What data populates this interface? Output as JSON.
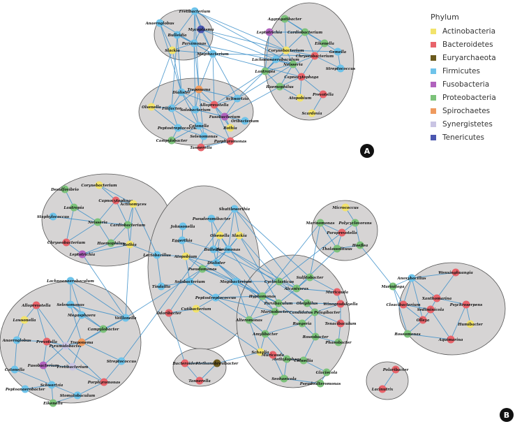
{
  "legend": {
    "title": "Phylum",
    "items": [
      {
        "label": "Actinobacteria",
        "color": "#f2e36b"
      },
      {
        "label": "Bacteroidetes",
        "color": "#e8636a"
      },
      {
        "label": "Euryarchaeota",
        "color": "#6b5a1e"
      },
      {
        "label": "Firmicutes",
        "color": "#6ec3ea"
      },
      {
        "label": "Fusobacteria",
        "color": "#b062bd"
      },
      {
        "label": "Proteobacteria",
        "color": "#7cc27a"
      },
      {
        "label": "Spirochaetes",
        "color": "#ef9a5e"
      },
      {
        "label": "Synergistetes",
        "color": "#c9c4e3"
      },
      {
        "label": "Tenericutes",
        "color": "#4b57b0"
      }
    ]
  },
  "panels": {
    "a": "A",
    "b": "B"
  },
  "network": {
    "edge_color": "#3a8ec9",
    "cluster_fill": "#d6d4d4",
    "nodes": [
      {
        "id": "a1",
        "label": "Fretibacterium",
        "phylum": "Firmicutes"
      },
      {
        "id": "a2",
        "label": "Anaeroglobus",
        "phylum": "Firmicutes"
      },
      {
        "id": "a3",
        "label": "Bulleidia",
        "phylum": "Firmicutes"
      },
      {
        "id": "a4",
        "label": "Mycoplasma",
        "phylum": "Tenericutes"
      },
      {
        "id": "a5",
        "label": "Parvimonas",
        "phylum": "Firmicutes"
      },
      {
        "id": "a6",
        "label": "Slackia",
        "phylum": "Actinobacteria"
      },
      {
        "id": "a7",
        "label": "Mogibacterium",
        "phylum": "Firmicutes"
      },
      {
        "id": "a8",
        "label": "Aggregatibacter",
        "phylum": "Proteobacteria"
      },
      {
        "id": "a9",
        "label": "Leptotrichia",
        "phylum": "Fusobacteria"
      },
      {
        "id": "a10",
        "label": "Cardiobacterium",
        "phylum": "Proteobacteria"
      },
      {
        "id": "a11",
        "label": "Eikenella",
        "phylum": "Proteobacteria"
      },
      {
        "id": "a12",
        "label": "Corynebacterium",
        "phylum": "Actinobacteria"
      },
      {
        "id": "a13",
        "label": "Gemella",
        "phylum": "Firmicutes"
      },
      {
        "id": "a14",
        "label": "Chryseobacterium",
        "phylum": "Bacteroidetes"
      },
      {
        "id": "a15",
        "label": "Lachnoanaerobaculum",
        "phylum": "Firmicutes"
      },
      {
        "id": "a16",
        "label": "Neisseria",
        "phylum": "Proteobacteria"
      },
      {
        "id": "a17",
        "label": "Streptococcus",
        "phylum": "Firmicutes"
      },
      {
        "id": "a18",
        "label": "Lautropia",
        "phylum": "Proteobacteria"
      },
      {
        "id": "a19",
        "label": "Capnocytophaga",
        "phylum": "Bacteroidetes"
      },
      {
        "id": "a20",
        "label": "Haemophilus",
        "phylum": "Proteobacteria"
      },
      {
        "id": "a21",
        "label": "Prevotella",
        "phylum": "Bacteroidetes"
      },
      {
        "id": "a22",
        "label": "Atopobium",
        "phylum": "Actinobacteria"
      },
      {
        "id": "a23",
        "label": "Scardovia",
        "phylum": "Actinobacteria"
      },
      {
        "id": "a24",
        "label": "Treponema",
        "phylum": "Spirochaetes"
      },
      {
        "id": "a25",
        "label": "Dialister",
        "phylum": "Firmicutes"
      },
      {
        "id": "a26",
        "label": "Schwartzia",
        "phylum": "Firmicutes"
      },
      {
        "id": "a27",
        "label": "Filifactor",
        "phylum": "Firmicutes"
      },
      {
        "id": "a28",
        "label": "Alloprevotella",
        "phylum": "Bacteroidetes"
      },
      {
        "id": "a29",
        "label": "Olsenella",
        "phylum": "Actinobacteria"
      },
      {
        "id": "a30",
        "label": "Solobacterium",
        "phylum": "Firmicutes"
      },
      {
        "id": "a31",
        "label": "Fusobacterium",
        "phylum": "Fusobacteria"
      },
      {
        "id": "a32",
        "label": "Oribacterium",
        "phylum": "Firmicutes"
      },
      {
        "id": "a33",
        "label": "Peptostreptococcus",
        "phylum": "Firmicutes"
      },
      {
        "id": "a34",
        "label": "Catonella",
        "phylum": "Firmicutes"
      },
      {
        "id": "a35",
        "label": "Rothia",
        "phylum": "Actinobacteria"
      },
      {
        "id": "a36",
        "label": "Selenomonas",
        "phylum": "Firmicutes"
      },
      {
        "id": "a37",
        "label": "Porphyromonas",
        "phylum": "Bacteroidetes"
      },
      {
        "id": "a38",
        "label": "Campylobacter",
        "phylum": "Proteobacteria"
      },
      {
        "id": "a39",
        "label": "Tannerella",
        "phylum": "Bacteroidetes"
      },
      {
        "id": "b1",
        "label": "Corynebacterium",
        "phylum": "Actinobacteria"
      },
      {
        "id": "b2",
        "label": "Desulfovibrio",
        "phylum": "Proteobacteria"
      },
      {
        "id": "b3",
        "label": "Capnocytophaga",
        "phylum": "Bacteroidetes"
      },
      {
        "id": "b4",
        "label": "Lautropia",
        "phylum": "Proteobacteria"
      },
      {
        "id": "b5",
        "label": "Actinomyces",
        "phylum": "Actinobacteria"
      },
      {
        "id": "b6",
        "label": "Staphylococcus",
        "phylum": "Firmicutes"
      },
      {
        "id": "b7",
        "label": "Neisseria",
        "phylum": "Proteobacteria"
      },
      {
        "id": "b8",
        "label": "Cardiobacterium",
        "phylum": "Proteobacteria"
      },
      {
        "id": "b9",
        "label": "Chryseobacterium",
        "phylum": "Bacteroidetes"
      },
      {
        "id": "b10",
        "label": "Haemophilus",
        "phylum": "Proteobacteria"
      },
      {
        "id": "b11",
        "label": "Rothia",
        "phylum": "Actinobacteria"
      },
      {
        "id": "b12",
        "label": "Leptotrichia",
        "phylum": "Fusobacteria"
      },
      {
        "id": "b13",
        "label": "Lachnoanaerobaculum",
        "phylum": "Firmicutes"
      },
      {
        "id": "b14",
        "label": "Alloprevotella",
        "phylum": "Bacteroidetes"
      },
      {
        "id": "b15",
        "label": "Selenomonas",
        "phylum": "Firmicutes"
      },
      {
        "id": "b16",
        "label": "Lawsonella",
        "phylum": "Actinobacteria"
      },
      {
        "id": "b17",
        "label": "Megasphaera",
        "phylum": "Firmicutes"
      },
      {
        "id": "b18",
        "label": "Veillonella",
        "phylum": "Firmicutes"
      },
      {
        "id": "b19",
        "label": "Campylobacter",
        "phylum": "Proteobacteria"
      },
      {
        "id": "b20",
        "label": "Anaeroglobus",
        "phylum": "Firmicutes"
      },
      {
        "id": "b21",
        "label": "Prevotella",
        "phylum": "Bacteroidetes"
      },
      {
        "id": "b22",
        "label": "Pyramidobacter",
        "phylum": "Synergistetes"
      },
      {
        "id": "b23",
        "label": "Treponema",
        "phylum": "Spirochaetes"
      },
      {
        "id": "b24",
        "label": "Catonella",
        "phylum": "Firmicutes"
      },
      {
        "id": "b25",
        "label": "Fusobacterium",
        "phylum": "Fusobacteria"
      },
      {
        "id": "b26",
        "label": "Fretibacterium",
        "phylum": "Synergistetes"
      },
      {
        "id": "b27",
        "label": "Streptococcus",
        "phylum": "Firmicutes"
      },
      {
        "id": "b28",
        "label": "Schwartzia",
        "phylum": "Firmicutes"
      },
      {
        "id": "b29",
        "label": "Porphyromonas",
        "phylum": "Bacteroidetes"
      },
      {
        "id": "b30",
        "label": "Peptoanaerobacter",
        "phylum": "Firmicutes"
      },
      {
        "id": "b31",
        "label": "Stomatobaculum",
        "phylum": "Firmicutes"
      },
      {
        "id": "b32",
        "label": "Eikenella",
        "phylum": "Proteobacteria"
      },
      {
        "id": "b33",
        "label": "Shuttleworthia",
        "phylum": "Firmicutes"
      },
      {
        "id": "b34",
        "label": "Pseudoramibacter",
        "phylum": "Firmicutes"
      },
      {
        "id": "b35",
        "label": "Johnsonella",
        "phylum": "Firmicutes"
      },
      {
        "id": "b36",
        "label": "Olsenella",
        "phylum": "Actinobacteria"
      },
      {
        "id": "b37",
        "label": "Slackia",
        "phylum": "Actinobacteria"
      },
      {
        "id": "b38",
        "label": "Eggerthia",
        "phylum": "Firmicutes"
      },
      {
        "id": "b39",
        "label": "Bulleidia",
        "phylum": "Firmicutes"
      },
      {
        "id": "b40",
        "label": "Parvimonas",
        "phylum": "Firmicutes"
      },
      {
        "id": "b41",
        "label": "Lactobacillus",
        "phylum": "Firmicutes"
      },
      {
        "id": "b42",
        "label": "Atopobium",
        "phylum": "Actinobacteria"
      },
      {
        "id": "b43",
        "label": "Dialister",
        "phylum": "Firmicutes"
      },
      {
        "id": "b44",
        "label": "Pseudomonas",
        "phylum": "Proteobacteria"
      },
      {
        "id": "b45",
        "label": "Solobacterium",
        "phylum": "Firmicutes"
      },
      {
        "id": "b46",
        "label": "Mogibacterium",
        "phylum": "Firmicutes"
      },
      {
        "id": "b47",
        "label": "Tindallia",
        "phylum": "Firmicutes"
      },
      {
        "id": "b48",
        "label": "Peptostreptococcus",
        "phylum": "Firmicutes"
      },
      {
        "id": "b49",
        "label": "Cutibacterium",
        "phylum": "Actinobacteria"
      },
      {
        "id": "b50",
        "label": "Odoribacter",
        "phylum": "Bacteroidetes"
      },
      {
        "id": "b51",
        "label": "Micrococcus",
        "phylum": "Actinobacteria"
      },
      {
        "id": "b52",
        "label": "Marinomonas",
        "phylum": "Proteobacteria"
      },
      {
        "id": "b53",
        "label": "Polycyclovorans",
        "phylum": "Proteobacteria"
      },
      {
        "id": "b54",
        "label": "Paraprevotella",
        "phylum": "Bacteroidetes"
      },
      {
        "id": "b55",
        "label": "Thalassolituus",
        "phylum": "Proteobacteria"
      },
      {
        "id": "b56",
        "label": "Hoeflea",
        "phylum": "Proteobacteria"
      },
      {
        "id": "b57",
        "label": "Sulfitobacter",
        "phylum": "Proteobacteria"
      },
      {
        "id": "b58",
        "label": "Cycloclasticus",
        "phylum": "Proteobacteria"
      },
      {
        "id": "b59",
        "label": "Alcanivorax",
        "phylum": "Proteobacteria"
      },
      {
        "id": "b60",
        "label": "Muricauda",
        "phylum": "Bacteroidetes"
      },
      {
        "id": "b61",
        "label": "Hyphomonas",
        "phylum": "Proteobacteria"
      },
      {
        "id": "b62",
        "label": "Parvibaculum",
        "phylum": "Proteobacteria"
      },
      {
        "id": "b63",
        "label": "Oleiphilus",
        "phylum": "Proteobacteria"
      },
      {
        "id": "b64",
        "label": "Winogradskyella",
        "phylum": "Bacteroidetes"
      },
      {
        "id": "b65",
        "label": "Marinobacter",
        "phylum": "Proteobacteria"
      },
      {
        "id": "b66",
        "label": "Candidatus Pelagibacter",
        "phylum": "Proteobacteria"
      },
      {
        "id": "b67",
        "label": "Ruegeria",
        "phylum": "Proteobacteria"
      },
      {
        "id": "b68",
        "label": "Tenacibaculum",
        "phylum": "Bacteroidetes"
      },
      {
        "id": "b69",
        "label": "Alteromonas",
        "phylum": "Proteobacteria"
      },
      {
        "id": "b70",
        "label": "Amylibacter",
        "phylum": "Proteobacteria"
      },
      {
        "id": "b71",
        "label": "Roseobacter",
        "phylum": "Proteobacteria"
      },
      {
        "id": "b72",
        "label": "Phaeobacter",
        "phylum": "Proteobacteria"
      },
      {
        "id": "b73",
        "label": "Schaalia",
        "phylum": "Actinobacteria"
      },
      {
        "id": "b74",
        "label": "Methylophaga",
        "phylum": "Proteobacteria"
      },
      {
        "id": "b75",
        "label": "Muricauda",
        "phylum": "Bacteroidetes"
      },
      {
        "id": "b76",
        "label": "Colwellia",
        "phylum": "Proteobacteria"
      },
      {
        "id": "b77",
        "label": "Glaciecola",
        "phylum": "Proteobacteria"
      },
      {
        "id": "b78",
        "label": "Seohaeicola",
        "phylum": "Proteobacteria"
      },
      {
        "id": "b79",
        "label": "Pseudoalteromonas",
        "phylum": "Proteobacteria"
      },
      {
        "id": "b80",
        "label": "Bacteroides",
        "phylum": "Bacteroidetes"
      },
      {
        "id": "b81",
        "label": "Methanobrevibacter",
        "phylum": "Euryarchaeota"
      },
      {
        "id": "b82",
        "label": "Tannerella",
        "phylum": "Bacteroidetes"
      },
      {
        "id": "b83",
        "label": "Marinitoga",
        "phylum": "Proteobacteria"
      },
      {
        "id": "b84",
        "label": "Anoxybacillus",
        "phylum": "Firmicutes"
      },
      {
        "id": "b85",
        "label": "Wenxinghuangia",
        "phylum": "Bacteroidetes"
      },
      {
        "id": "b86",
        "label": "Xanthomarina",
        "phylum": "Bacteroidetes"
      },
      {
        "id": "b87",
        "label": "Cloacibacterium",
        "phylum": "Bacteroidetes"
      },
      {
        "id": "b88",
        "label": "Psychroserpens",
        "phylum": "Bacteroidetes"
      },
      {
        "id": "b89",
        "label": "Sediminicola",
        "phylum": "Bacteroidetes"
      },
      {
        "id": "b90",
        "label": "Olleya",
        "phylum": "Bacteroidetes"
      },
      {
        "id": "b91",
        "label": "Humibacter",
        "phylum": "Actinobacteria"
      },
      {
        "id": "b92",
        "label": "Roseomonas",
        "phylum": "Proteobacteria"
      },
      {
        "id": "b93",
        "label": "Aquimarina",
        "phylum": "Bacteroidetes"
      },
      {
        "id": "b94",
        "label": "Polaribacter",
        "phylum": "Bacteroidetes"
      },
      {
        "id": "b95",
        "label": "Lacinutrix",
        "phylum": "Bacteroidetes"
      }
    ]
  }
}
